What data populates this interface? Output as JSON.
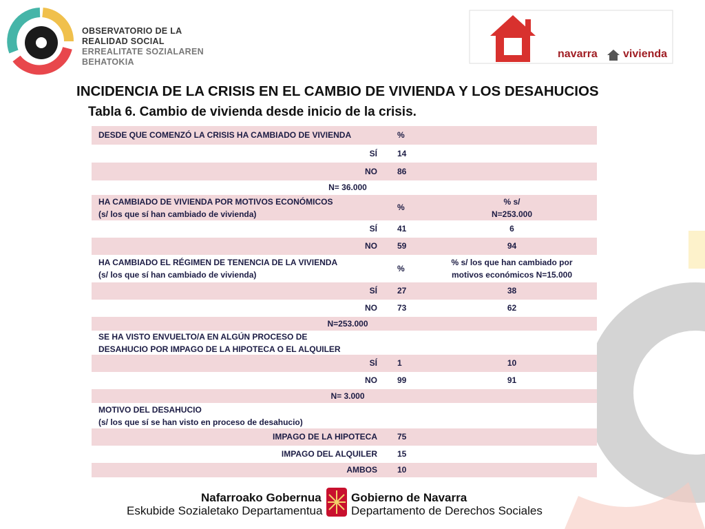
{
  "logo": {
    "lines": [
      "OBSERVATORIO DE LA",
      "REALIDAD SOCIAL",
      "ERREALITATE SOZIALAREN",
      "BEHATOKIA"
    ]
  },
  "partner_logo": {
    "left": "navarra",
    "right": "vivienda"
  },
  "header": {
    "title": "INCIDENCIA DE LA CRISIS EN EL CAMBIO DE VIVIENDA Y LOS DESAHUCIOS",
    "subtitle": "Tabla 6. Cambio de vivienda desde inicio de la crisis."
  },
  "table": {
    "rows": [
      [
        [
          "DESDE QUE COMENZÓ LA CRISIS HA CAMBIADO DE VIVIENDA"
        ],
        "%"
      ],
      [
        "SÍ",
        14
      ],
      [
        "NO",
        86
      ],
      [
        "N= 36.000"
      ],
      [
        [
          "HA CAMBIADO DE VIVIENDA POR MOTIVOS ECONÓMICOS",
          "(s/ los que sí han cambiado de vivienda)"
        ],
        "%",
        [
          "% s/",
          "N=253.000"
        ]
      ],
      [
        "SÍ",
        41,
        6
      ],
      [
        "NO",
        59,
        94
      ],
      [
        [
          "HA CAMBIADO EL RÉGIMEN DE TENENCIA DE LA VIVIENDA",
          "(s/ los que sí han cambiado de vivienda)"
        ],
        "%",
        [
          "% s/ los que han cambiado por",
          "motivos económicos N=15.000"
        ]
      ],
      [
        "SÍ",
        27,
        38
      ],
      [
        "NO",
        73,
        62
      ],
      [
        "N=253.000"
      ],
      [
        [
          "SE HA VISTO ENVUELTO/A EN ALGÚN PROCESO DE",
          "DESAHUCIO POR IMPAGO DE LA HIPOTECA O EL ALQUILER"
        ]
      ],
      [
        "SÍ",
        1,
        10
      ],
      [
        "NO",
        99,
        91
      ],
      [
        "N= 3.000"
      ],
      [
        [
          "MOTIVO DEL DESAHUCIO",
          "(s/ los que sí se han visto en proceso de desahucio)"
        ]
      ],
      [
        "IMPAGO DE LA HIPOTECA",
        75
      ],
      [
        "IMPAGO DEL ALQUILER",
        15
      ],
      [
        "AMBOS",
        10
      ]
    ]
  },
  "footer": {
    "eu_name": "Nafarroako Gobernua",
    "eu_dept": "Eskubide Sozialetako Departamentua",
    "es_name": "Gobierno de Navarra",
    "es_dept": "Departamento de Derechos Sociales"
  }
}
